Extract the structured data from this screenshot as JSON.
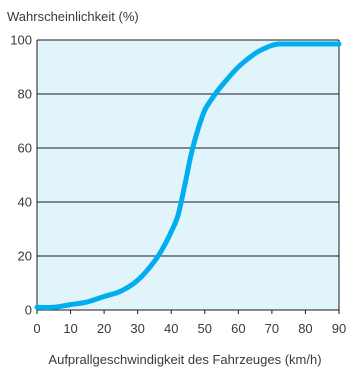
{
  "chart_data": {
    "type": "line",
    "title": "",
    "ylabel": "Wahrscheinlichkeit (%)",
    "xlabel": "Aufprallgeschwindigkeit des Fahrzeuges (km/h)",
    "xlim": [
      0,
      90
    ],
    "ylim": [
      0,
      100
    ],
    "x_ticks": [
      "0",
      "10",
      "20",
      "30",
      "40",
      "50",
      "60",
      "70",
      "80",
      "90"
    ],
    "y_ticks": [
      "0",
      "20",
      "40",
      "60",
      "80",
      "100"
    ],
    "grid": "horizontal",
    "colors": {
      "line": "#00aeef",
      "plot_background": "#e1f4fc",
      "grid": "#1a1a1a"
    },
    "series": [
      {
        "x": [
          0,
          5,
          10,
          15,
          20,
          25,
          30,
          35,
          38,
          40,
          42,
          44,
          46,
          48,
          50,
          52,
          55,
          60,
          65,
          68,
          70,
          72,
          75,
          80,
          85,
          90
        ],
        "y": [
          1,
          1,
          2,
          3,
          5,
          7,
          11,
          18,
          24,
          29,
          35,
          46,
          58,
          67,
          74,
          78,
          83,
          90,
          95,
          97,
          98,
          98.5,
          98.5,
          98.5,
          98.5,
          98.5
        ]
      }
    ]
  }
}
